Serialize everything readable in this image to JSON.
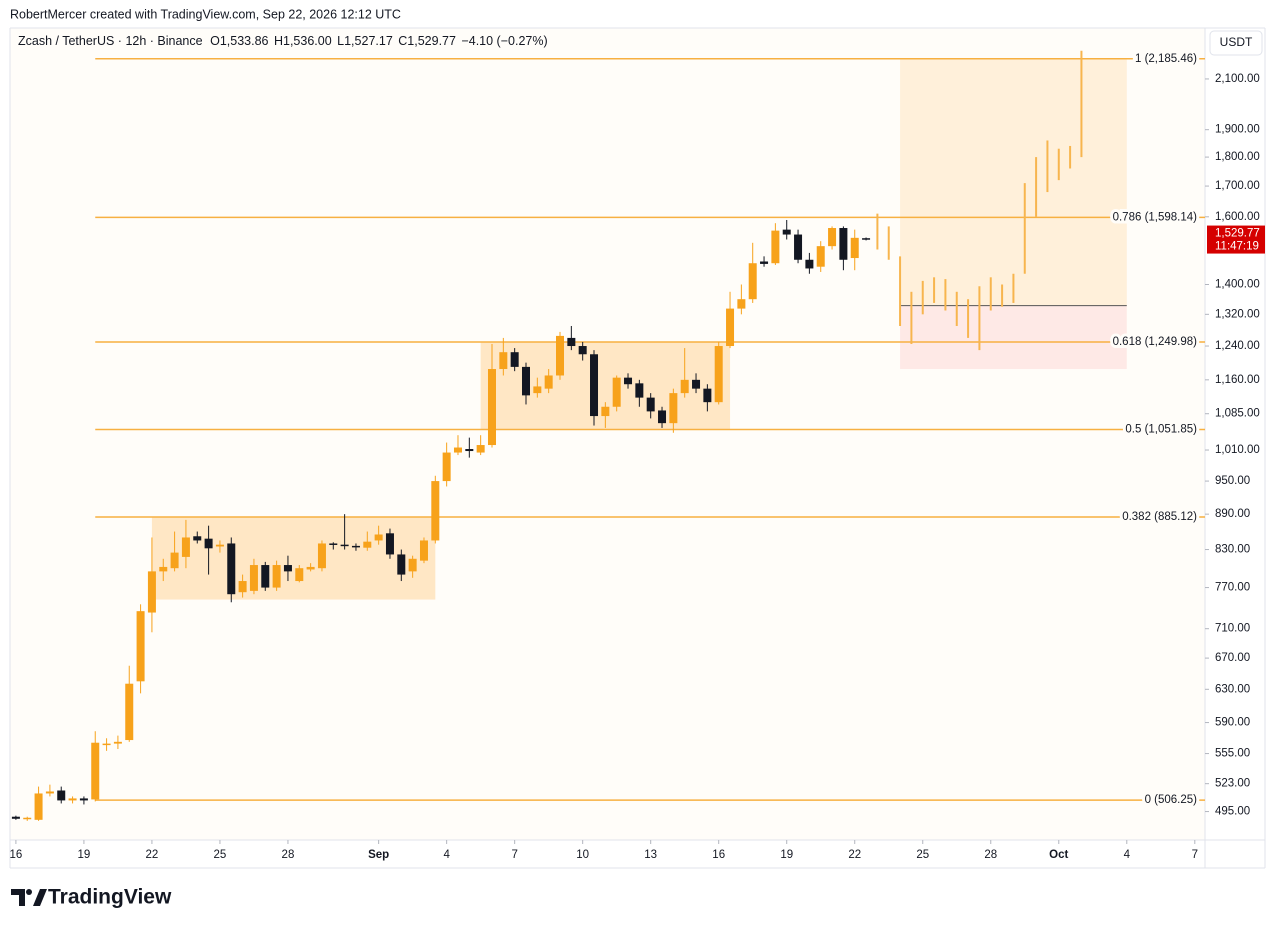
{
  "chart_data": {
    "type": "candlestick",
    "header": {
      "attribution": "RobertMercer created with TradingView.com, Sep 22, 2026 12:12 UTC",
      "symbol": "Zcash / TetherUS · 12h · Binance",
      "open_label": "O",
      "open": "1,533.86",
      "high_label": "H",
      "high": "1,536.00",
      "low_label": "L",
      "low": "1,527.17",
      "close_label": "C",
      "close": "1,529.77",
      "change": "−4.10 (−0.27%)"
    },
    "currency": "USDT",
    "logo": "TradingView",
    "log_scale": true,
    "up_color": "#f7a21b",
    "down_color": "#131722",
    "xlim": [
      -0.26,
      52.45
    ],
    "xticks": [
      {
        "value": 0,
        "label": "16"
      },
      {
        "value": 3,
        "label": "19"
      },
      {
        "value": 6,
        "label": "22"
      },
      {
        "value": 9,
        "label": "25"
      },
      {
        "value": 12,
        "label": "28"
      },
      {
        "value": 16,
        "label": "Sep"
      },
      {
        "value": 19,
        "label": "4"
      },
      {
        "value": 22,
        "label": "7"
      },
      {
        "value": 25,
        "label": "10"
      },
      {
        "value": 28,
        "label": "13"
      },
      {
        "value": 31,
        "label": "16"
      },
      {
        "value": 34,
        "label": "19"
      },
      {
        "value": 37,
        "label": "22"
      },
      {
        "value": 40,
        "label": "25"
      },
      {
        "value": 43,
        "label": "28"
      },
      {
        "value": 46,
        "label": "Oct"
      },
      {
        "value": 49,
        "label": "4"
      },
      {
        "value": 52,
        "label": "7"
      }
    ],
    "ylim": [
      468,
      2322
    ],
    "yticks": [
      {
        "value": 2100,
        "label": "2,100.00"
      },
      {
        "value": 1900,
        "label": "1,900.00"
      },
      {
        "value": 1800,
        "label": "1,800.00"
      },
      {
        "value": 1700,
        "label": "1,700.00"
      },
      {
        "value": 1600,
        "label": "1,600.00"
      },
      {
        "value": 1400,
        "label": "1,400.00"
      },
      {
        "value": 1320,
        "label": "1,320.00"
      },
      {
        "value": 1240,
        "label": "1,240.00"
      },
      {
        "value": 1160,
        "label": "1,160.00"
      },
      {
        "value": 1085,
        "label": "1,085.00"
      },
      {
        "value": 1010,
        "label": "1,010.00"
      },
      {
        "value": 950,
        "label": "950.00"
      },
      {
        "value": 890,
        "label": "890.00"
      },
      {
        "value": 830,
        "label": "830.00"
      },
      {
        "value": 770,
        "label": "770.00"
      },
      {
        "value": 710,
        "label": "710.00"
      },
      {
        "value": 670,
        "label": "670.00"
      },
      {
        "value": 630,
        "label": "630.00"
      },
      {
        "value": 590,
        "label": "590.00"
      },
      {
        "value": 555,
        "label": "555.00"
      },
      {
        "value": 523,
        "label": "523.00"
      },
      {
        "value": 495,
        "label": "495.00"
      }
    ],
    "candles": {
      "x": [
        0,
        0.5,
        1,
        1.5,
        2,
        2.5,
        3,
        3.5,
        4,
        4.5,
        5,
        5.5,
        6,
        6.5,
        7,
        7.5,
        8,
        8.5,
        9,
        9.5,
        10,
        10.5,
        11,
        11.5,
        12,
        12.5,
        13,
        13.5,
        14,
        14.5,
        15,
        15.5,
        16,
        16.5,
        17,
        17.5,
        18,
        18.5,
        19,
        19.5,
        20,
        20.5,
        21,
        21.5,
        22,
        22.5,
        23,
        23.5,
        24,
        24.5,
        25,
        25.5,
        26,
        26.5,
        27,
        27.5,
        28,
        28.5,
        29,
        29.5,
        30,
        30.5,
        31,
        31.5,
        32,
        32.5,
        33,
        33.5,
        34,
        34.5,
        35,
        35.5,
        36,
        36.5,
        37,
        37.5
      ],
      "open": [
        490,
        488,
        487,
        513,
        516,
        506,
        508,
        507,
        565,
        566,
        570,
        640,
        733,
        795,
        800,
        818,
        852,
        848,
        835,
        840,
        763,
        765,
        805,
        770,
        805,
        780,
        798,
        800,
        840,
        838,
        836,
        833,
        845,
        857,
        822,
        795,
        812,
        845,
        950,
        1005,
        1012,
        1005,
        1020,
        1185,
        1225,
        1190,
        1130,
        1140,
        1170,
        1260,
        1240,
        1220,
        1080,
        1100,
        1165,
        1152,
        1120,
        1092,
        1065,
        1130,
        1160,
        1140,
        1110,
        1240,
        1335,
        1360,
        1465,
        1460,
        1560,
        1545,
        1470,
        1450,
        1510,
        1565,
        1475,
        1533.86
      ],
      "high": [
        491,
        490,
        520,
        522,
        520,
        510,
        510,
        580,
        572,
        575,
        660,
        745,
        850,
        815,
        860,
        880,
        860,
        870,
        845,
        850,
        790,
        815,
        810,
        812,
        820,
        805,
        808,
        845,
        842,
        890,
        840,
        860,
        870,
        865,
        830,
        820,
        850,
        960,
        1025,
        1040,
        1035,
        1040,
        1245,
        1260,
        1235,
        1200,
        1165,
        1185,
        1275,
        1290,
        1250,
        1230,
        1110,
        1170,
        1175,
        1160,
        1130,
        1100,
        1140,
        1235,
        1175,
        1150,
        1250,
        1380,
        1400,
        1520,
        1480,
        1580,
        1590,
        1560,
        1490,
        1525,
        1570,
        1570,
        1560,
        1536
      ],
      "low": [
        487,
        486,
        486,
        510,
        503,
        503,
        502,
        505,
        558,
        560,
        568,
        625,
        705,
        780,
        795,
        800,
        840,
        790,
        825,
        748,
        755,
        760,
        765,
        765,
        780,
        778,
        795,
        795,
        830,
        830,
        828,
        828,
        838,
        815,
        780,
        785,
        808,
        840,
        940,
        1000,
        995,
        1000,
        1015,
        1170,
        1180,
        1105,
        1120,
        1130,
        1160,
        1230,
        1205,
        1060,
        1055,
        1090,
        1140,
        1100,
        1075,
        1055,
        1045,
        1120,
        1130,
        1090,
        1105,
        1235,
        1320,
        1350,
        1450,
        1455,
        1530,
        1460,
        1430,
        1435,
        1500,
        1440,
        1440,
        1527.17
      ],
      "close": [
        488,
        489,
        513,
        515,
        506,
        508,
        506,
        567,
        566,
        568,
        637,
        735,
        795,
        802,
        825,
        850,
        845,
        832,
        838,
        760,
        780,
        805,
        770,
        805,
        795,
        800,
        802,
        840,
        838,
        836,
        834,
        843,
        855,
        822,
        790,
        815,
        845,
        950,
        1005,
        1015,
        1008,
        1020,
        1185,
        1225,
        1190,
        1125,
        1145,
        1170,
        1265,
        1240,
        1220,
        1080,
        1100,
        1165,
        1150,
        1120,
        1090,
        1065,
        1130,
        1160,
        1140,
        1110,
        1240,
        1335,
        1360,
        1460,
        1458,
        1557,
        1545,
        1470,
        1445,
        1510,
        1565,
        1470,
        1535,
        1529.77
      ]
    },
    "projection": {
      "color": "#f7b54e",
      "x": [
        38,
        38.5,
        39,
        39.5,
        40,
        40.5,
        41,
        41.5,
        42,
        42.5,
        43,
        43.5,
        44,
        44.5,
        45,
        45.5,
        46,
        46.5,
        47
      ],
      "high": [
        1610,
        1570,
        1480,
        1380,
        1410,
        1420,
        1415,
        1380,
        1360,
        1395,
        1420,
        1400,
        1430,
        1710,
        1800,
        1860,
        1830,
        1840,
        2220
      ],
      "low": [
        1500,
        1470,
        1290,
        1245,
        1320,
        1350,
        1330,
        1290,
        1260,
        1230,
        1330,
        1340,
        1350,
        1430,
        1600,
        1680,
        1720,
        1760,
        1800
      ]
    },
    "fib_color": "#f7b041",
    "fib_levels": [
      {
        "value": 2185.46,
        "label": "1 (2,185.46)"
      },
      {
        "value": 1598.14,
        "label": "0.786 (1,598.14)"
      },
      {
        "value": 1249.98,
        "label": "0.618 (1,249.98)"
      },
      {
        "value": 1051.85,
        "label": "0.5 (1,051.85)"
      },
      {
        "value": 885.12,
        "label": "0.382 (885.12)"
      },
      {
        "value": 506.25,
        "label": "0 (506.25)"
      }
    ],
    "fib_start": 3.5,
    "fib_end": 49,
    "ranges": [
      {
        "x": [
          6,
          18.5
        ],
        "y": [
          752,
          885
        ]
      },
      {
        "x": [
          20.5,
          31.5
        ],
        "y": [
          1052,
          1250
        ]
      }
    ],
    "position": {
      "x": [
        39,
        49
      ],
      "entry": 1343,
      "target": 2185.46,
      "stop": 1185
    },
    "last_price": {
      "value": 1529.77,
      "label": "1,529.77",
      "countdown": "11:47:19",
      "color": "#d50000"
    }
  }
}
